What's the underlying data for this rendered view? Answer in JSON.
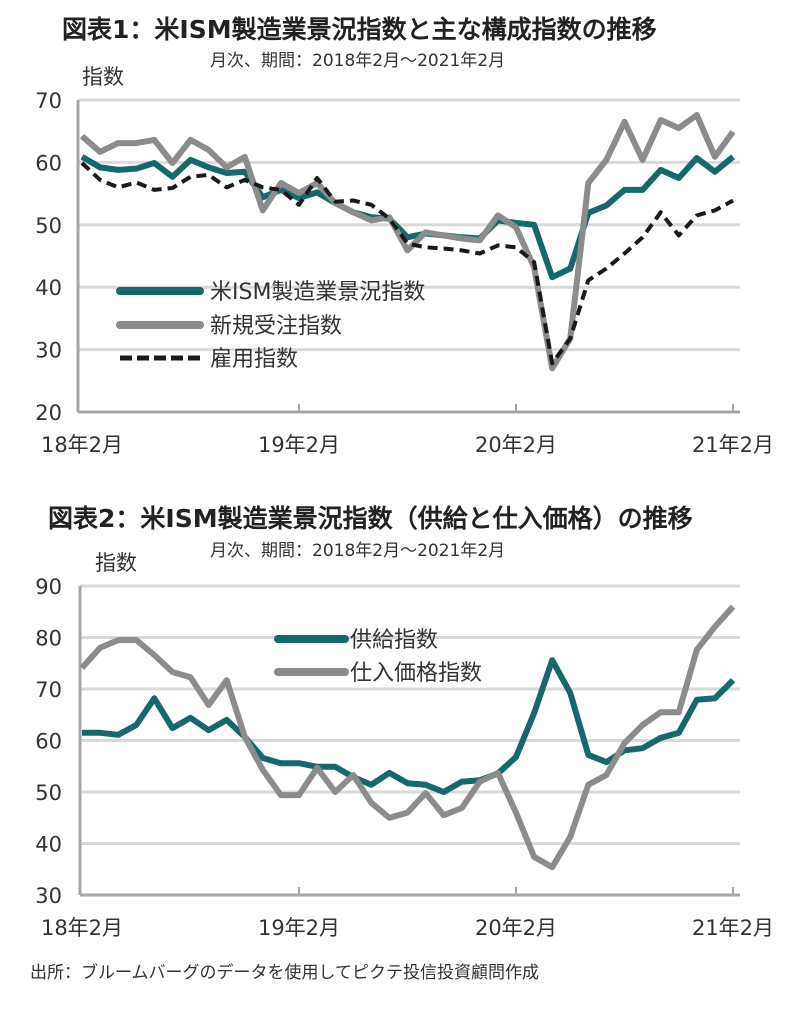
{
  "chart_data": [
    {
      "type": "line",
      "title": "図表1：米ISM製造業景況指数と主な構成指数の推移",
      "subtitle": "月次、期間：2018年2月～2021年2月",
      "ylabel": "指数",
      "xlabel": "",
      "ylim": [
        20,
        70
      ],
      "yticks": [
        "70",
        "60",
        "50",
        "40",
        "30",
        "20"
      ],
      "xtick_labels": [
        "18年2月",
        "19年2月",
        "20年2月",
        "21年2月"
      ],
      "grid": true,
      "legend_position": "center-left",
      "series": [
        {
          "name": "米ISM製造業景況指数",
          "color": "#16696b",
          "style": "solid",
          "values": [
            60.9,
            59.2,
            58.8,
            59.0,
            59.9,
            57.7,
            60.4,
            59.2,
            58.3,
            58.5,
            54.4,
            55.6,
            54.3,
            55.2,
            53.5,
            52.0,
            51.2,
            51.0,
            48.0,
            48.6,
            48.3,
            48.0,
            47.8,
            50.7,
            50.3,
            50.0,
            41.6,
            43.0,
            51.9,
            53.1,
            55.6,
            55.6,
            58.8,
            57.5,
            60.7,
            58.5,
            60.9
          ]
        },
        {
          "name": "新規受注指数",
          "color": "#8c8c8c",
          "style": "solid",
          "values": [
            64.2,
            61.7,
            63.1,
            63.1,
            63.6,
            59.9,
            63.6,
            62.0,
            59.2,
            60.9,
            52.3,
            56.7,
            55.1,
            56.7,
            53.5,
            52.0,
            50.7,
            51.2,
            45.9,
            48.8,
            48.3,
            47.8,
            47.5,
            51.5,
            49.6,
            43.2,
            27.0,
            31.8,
            56.7,
            60.4,
            66.5,
            60.4,
            66.8,
            65.5,
            67.6,
            60.9,
            64.9
          ]
        },
        {
          "name": "雇用指数",
          "color": "#1a1a1a",
          "style": "dashed",
          "values": [
            59.9,
            57.2,
            56.0,
            56.8,
            55.6,
            55.9,
            57.7,
            58.0,
            56.0,
            57.2,
            56.0,
            55.6,
            53.2,
            57.5,
            53.7,
            53.9,
            53.2,
            51.0,
            47.0,
            46.4,
            46.2,
            45.9,
            45.4,
            46.7,
            46.4,
            44.0,
            27.8,
            31.8,
            41.1,
            43.0,
            45.4,
            48.0,
            52.0,
            48.3,
            51.5,
            52.3,
            53.9
          ]
        }
      ]
    },
    {
      "type": "line",
      "title": "図表2：米ISM製造業景況指数（供給と仕入価格）の推移",
      "subtitle": "月次、期間：2018年2月～2021年2月",
      "ylabel": "指数",
      "xlabel": "",
      "ylim": [
        30,
        90
      ],
      "yticks": [
        "90",
        "80",
        "70",
        "60",
        "50",
        "40",
        "30"
      ],
      "xtick_labels": [
        "18年2月",
        "19年2月",
        "20年2月",
        "21年2月"
      ],
      "grid": true,
      "legend_position": "top-center",
      "series": [
        {
          "name": "供給指数",
          "color": "#16696b",
          "style": "solid",
          "values": [
            61.5,
            61.5,
            61.1,
            63.0,
            68.2,
            62.4,
            64.4,
            62.0,
            64.0,
            60.7,
            56.6,
            55.6,
            55.6,
            54.9,
            54.9,
            52.9,
            51.4,
            53.7,
            51.7,
            51.4,
            50.0,
            52.0,
            52.3,
            53.6,
            56.8,
            65.3,
            75.6,
            69.2,
            57.2,
            55.8,
            58.1,
            58.5,
            60.5,
            61.5,
            67.9,
            68.2,
            71.7
          ]
        },
        {
          "name": "仕入価格指数",
          "color": "#8c8c8c",
          "style": "solid",
          "values": [
            74.1,
            78.0,
            79.5,
            79.5,
            76.6,
            73.3,
            72.3,
            66.9,
            71.7,
            60.7,
            54.3,
            49.4,
            49.4,
            54.7,
            50.0,
            53.3,
            47.9,
            45.0,
            46.0,
            49.8,
            45.5,
            46.9,
            52.0,
            53.7,
            46.0,
            37.4,
            35.4,
            41.3,
            51.4,
            53.3,
            59.5,
            63.0,
            65.5,
            65.5,
            77.6,
            82.1,
            86.0
          ]
        }
      ]
    }
  ],
  "footnote": "出所：ブルームバーグのデータを使用してピクテ投信投資顧問作成"
}
